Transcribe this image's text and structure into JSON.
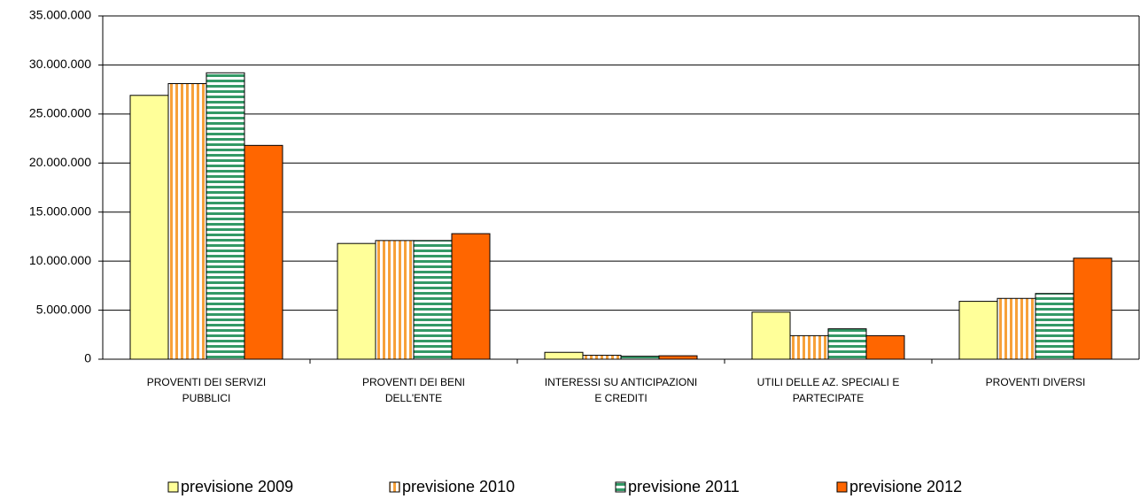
{
  "chart_data": {
    "type": "bar",
    "categories": [
      "PROVENTI DEI SERVIZI PUBBLICI",
      "PROVENTI DEI BENI DELL'ENTE",
      "INTERESSI SU ANTICIPAZIONI E CREDITI",
      "UTILI DELLE AZ. SPECIALI E PARTECIPATE",
      "PROVENTI DIVERSI"
    ],
    "series": [
      {
        "name": "previsione 2009",
        "color": "#ffff99",
        "values": [
          26900000,
          11800000,
          700000,
          4800000,
          5900000
        ]
      },
      {
        "name": "previsione 2010",
        "color": "#f7a13a",
        "pattern": "vertical",
        "values": [
          28100000,
          12100000,
          400000,
          2400000,
          6200000
        ]
      },
      {
        "name": "previsione 2011",
        "color": "#339966",
        "pattern": "horizontal",
        "values": [
          29200000,
          12100000,
          300000,
          3100000,
          6700000
        ]
      },
      {
        "name": "previsione 2012",
        "color": "#ff6600",
        "values": [
          21800000,
          12800000,
          350000,
          2400000,
          10300000
        ]
      }
    ],
    "ylim": [
      0,
      35000000
    ],
    "yticks": [
      0,
      {
        "value": 5000000,
        "label": "5.000.000"
      },
      {
        "value": 10000000,
        "label": "10.000.000"
      },
      {
        "value": 15000000,
        "label": "15.000.000"
      },
      {
        "value": 20000000,
        "label": "20.000.000"
      },
      {
        "value": 25000000,
        "label": "25.000.000"
      },
      {
        "value": 30000000,
        "label": "30.000.000"
      },
      {
        "value": 35000000,
        "label": "35.000.000"
      }
    ],
    "grid": true,
    "legend": "bottom"
  }
}
